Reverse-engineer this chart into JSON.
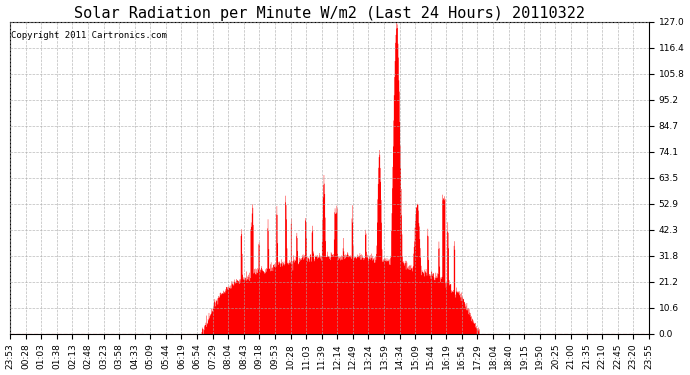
{
  "title": "Solar Radiation per Minute W/m2 (Last 24 Hours) 20110322",
  "copyright": "Copyright 2011 Cartronics.com",
  "bar_color": "#ff0000",
  "background_color": "#ffffff",
  "grid_color": "#aaaaaa",
  "zero_line_color": "#ff0000",
  "y_ticks": [
    0.0,
    10.6,
    21.2,
    31.8,
    42.3,
    52.9,
    63.5,
    74.1,
    84.7,
    95.2,
    105.8,
    116.4,
    127.0
  ],
  "ylim": [
    0.0,
    127.0
  ],
  "x_labels": [
    "23:53",
    "00:28",
    "01:03",
    "01:38",
    "02:13",
    "02:48",
    "03:23",
    "03:58",
    "04:33",
    "05:09",
    "05:44",
    "06:19",
    "06:54",
    "07:29",
    "08:04",
    "08:43",
    "09:18",
    "09:53",
    "10:28",
    "11:03",
    "11:39",
    "12:14",
    "12:49",
    "13:24",
    "13:59",
    "14:34",
    "15:09",
    "15:44",
    "16:19",
    "16:54",
    "17:29",
    "18:04",
    "18:40",
    "19:15",
    "19:50",
    "20:25",
    "21:00",
    "21:35",
    "22:10",
    "22:45",
    "23:20",
    "23:55"
  ],
  "title_fontsize": 11,
  "tick_fontsize": 6.5,
  "copyright_fontsize": 6.5,
  "figsize": [
    6.9,
    3.75
  ],
  "dpi": 100
}
